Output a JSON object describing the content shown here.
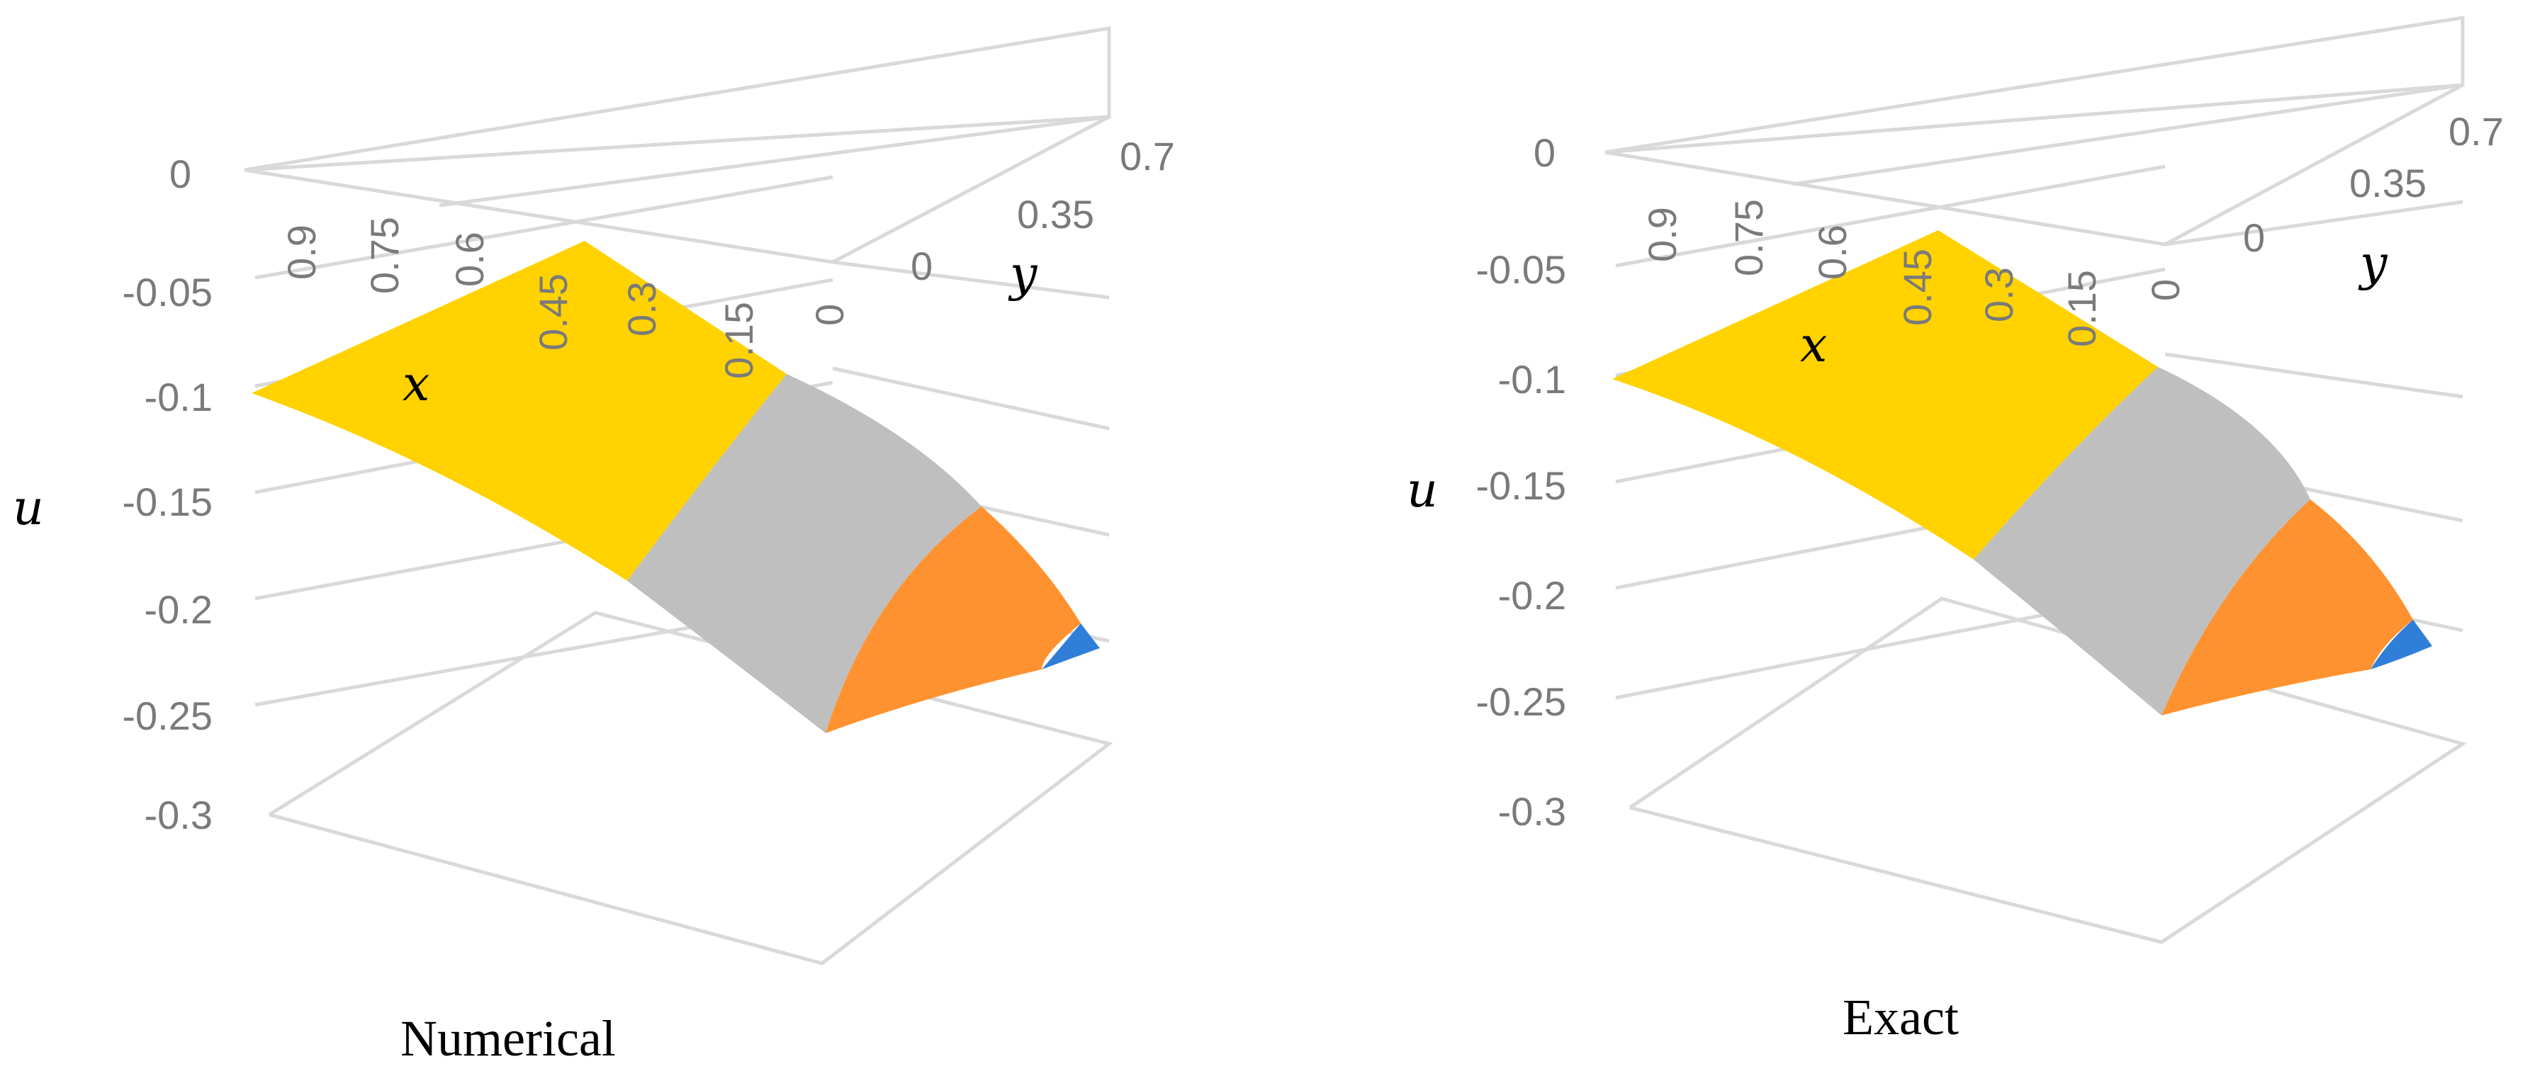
{
  "figure": {
    "panels": [
      {
        "caption": "Numerical",
        "u_var": "u",
        "x_var": "x",
        "y_var": "y"
      },
      {
        "caption": "Exact",
        "u_var": "u",
        "x_var": "x",
        "y_var": "y"
      }
    ]
  },
  "chart_data": [
    {
      "type": "surface",
      "title": "Numerical",
      "zlabel": "u",
      "xlabel": "x",
      "ylabel": "y",
      "z_ticks": [
        "0",
        "-0.05",
        "-0.1",
        "-0.15",
        "-0.2",
        "-0.25",
        "-0.3"
      ],
      "x_ticks": [
        "0.9",
        "0.75",
        "0.6",
        "0.45",
        "0.3",
        "0.15",
        "0"
      ],
      "y_ticks": [
        "0",
        "0.35",
        "0.7"
      ],
      "zlim": [
        -0.3,
        0
      ],
      "band_colors": [
        "#ffd200",
        "#bfbfbf",
        "#ff9230",
        "#2f7fd8"
      ],
      "surface_samples": [
        {
          "x": 0,
          "y": 0,
          "u": -0.1
        },
        {
          "x": 0,
          "y": 0.7,
          "u": -0.04
        },
        {
          "x": 0.9,
          "y": 0,
          "u": -0.26
        },
        {
          "x": 0.9,
          "y": 0.7,
          "u": -0.21
        }
      ]
    },
    {
      "type": "surface",
      "title": "Exact",
      "zlabel": "u",
      "xlabel": "x",
      "ylabel": "y",
      "z_ticks": [
        "0",
        "-0.05",
        "-0.1",
        "-0.15",
        "-0.2",
        "-0.25",
        "-0.3"
      ],
      "x_ticks": [
        "0.9",
        "0.75",
        "0.6",
        "0.45",
        "0.3",
        "0.15",
        "0"
      ],
      "y_ticks": [
        "0",
        "0.35",
        "0.7"
      ],
      "zlim": [
        -0.3,
        0
      ],
      "band_colors": [
        "#ffd200",
        "#bfbfbf",
        "#ff9230",
        "#2f7fd8"
      ],
      "surface_samples": [
        {
          "x": 0,
          "y": 0,
          "u": -0.1
        },
        {
          "x": 0,
          "y": 0.7,
          "u": -0.04
        },
        {
          "x": 0.9,
          "y": 0,
          "u": -0.26
        },
        {
          "x": 0.9,
          "y": 0.7,
          "u": -0.21
        }
      ]
    }
  ]
}
